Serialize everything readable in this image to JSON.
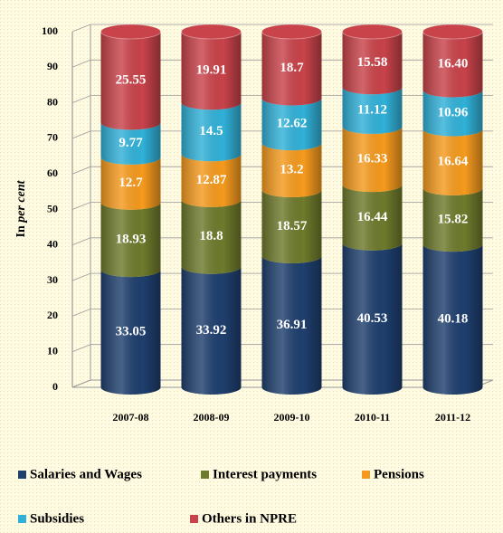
{
  "chart_data": {
    "type": "stacked_cylinder",
    "categories": [
      "2007-08",
      "2008-09",
      "2009-10",
      "2010-11",
      "2011-12"
    ],
    "series": [
      {
        "name": "Salaries and Wages",
        "color": "#1f3f6e",
        "values": [
          33.05,
          33.92,
          36.91,
          40.53,
          40.18
        ]
      },
      {
        "name": "Interest payments",
        "color": "#6e7a2c",
        "values": [
          18.93,
          18.8,
          18.57,
          16.44,
          15.82
        ]
      },
      {
        "name": "Pensions",
        "color": "#f59a1e",
        "values": [
          12.7,
          12.87,
          13.2,
          16.33,
          16.64
        ]
      },
      {
        "name": "Subsidies",
        "color": "#31b1d8",
        "values": [
          9.77,
          14.5,
          12.62,
          11.12,
          10.96
        ]
      },
      {
        "name": "Others in NPRE",
        "color": "#c8434a",
        "values": [
          25.55,
          19.91,
          18.7,
          15.58,
          16.4
        ],
        "value_labels": [
          "25.55",
          "19.91",
          "18.7",
          "15.58",
          "16.40"
        ]
      }
    ],
    "y_label": [
      "In",
      "per cent"
    ],
    "ylim": [
      0,
      100
    ],
    "yticks": [
      0,
      10,
      20,
      30,
      40,
      50,
      60,
      70,
      80,
      90,
      100
    ],
    "grid": true
  }
}
